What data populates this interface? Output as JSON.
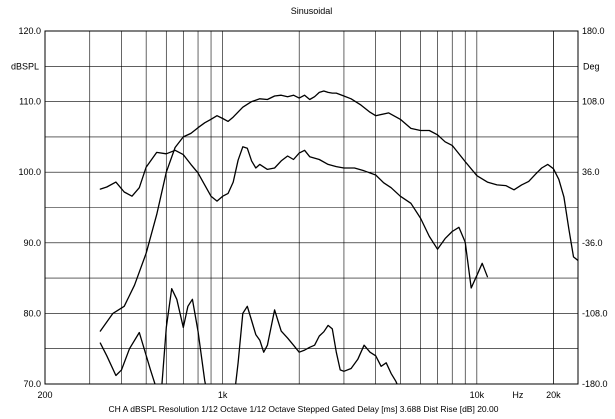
{
  "chart_data": {
    "type": "line",
    "title": "Sinusoidal",
    "x_scale": "log",
    "xlim": [
      200,
      25000
    ],
    "x_tick_labels": [
      {
        "value": 200,
        "label": "200"
      },
      {
        "value": 1000,
        "label": "1k"
      },
      {
        "value": 10000,
        "label": "10k"
      },
      {
        "value": 20000,
        "label": "20k"
      }
    ],
    "x_unit_label": "Hz",
    "left_axis": {
      "unit": "dBSPL",
      "ylim": [
        70,
        120
      ],
      "ticks": [
        {
          "value": 120,
          "label": "120.0"
        },
        {
          "value": 110,
          "label": "110.0"
        },
        {
          "value": 100,
          "label": "100.0"
        },
        {
          "value": 90,
          "label": "90.0"
        },
        {
          "value": 80,
          "label": "80.0"
        },
        {
          "value": 70,
          "label": "70.0"
        }
      ]
    },
    "right_axis": {
      "unit": "Deg",
      "ylim": [
        -180,
        180
      ],
      "ticks": [
        {
          "value": 180,
          "label": "180.0"
        },
        {
          "value": 108,
          "label": "108.0"
        },
        {
          "value": 36,
          "label": "36.0"
        },
        {
          "value": -36,
          "label": "-36.0"
        },
        {
          "value": -108,
          "label": "-108.0"
        },
        {
          "value": -180,
          "label": "-180.0"
        }
      ]
    },
    "grid": true,
    "footer": "CH A   dBSPL   Resolution 1/12 Octave   1/12 Octave   Stepped   Gated   Delay [ms] 3.688   Dist Rise [dB] 20.00",
    "series": [
      {
        "x": [
          330,
          370,
          410,
          450,
          500,
          550,
          600,
          650,
          700,
          750,
          800,
          850,
          900,
          950,
          1000,
          1050,
          1100,
          1200,
          1300,
          1400,
          1500,
          1600,
          1700,
          1800,
          1900,
          2000,
          2100,
          2200,
          2300,
          2400,
          2500,
          2600,
          2700,
          2800,
          3000,
          3200,
          3500,
          3800,
          4000,
          4500,
          5000,
          5500,
          6000,
          6500,
          7000,
          7500,
          8000,
          9000,
          10000,
          11000,
          12000,
          13000,
          14000,
          15000,
          16000,
          17000,
          18000,
          19000,
          20000,
          21000,
          22000,
          23000,
          24000,
          25000
        ],
        "y": [
          77.5,
          80,
          81,
          84,
          88.5,
          94,
          100,
          103.5,
          105,
          105.5,
          106.3,
          107,
          107.5,
          108,
          107.6,
          107.2,
          107.8,
          109.2,
          110,
          110.4,
          110.3,
          110.8,
          110.9,
          110.7,
          110.9,
          110.5,
          110.9,
          110.3,
          110.7,
          111.3,
          111.5,
          111.3,
          111.2,
          111.2,
          110.8,
          110.4,
          109.5,
          108.5,
          108,
          108.4,
          107.5,
          106.2,
          105.9,
          105.9,
          105.3,
          104.3,
          103.8,
          101.5,
          99.5,
          98.6,
          98.2,
          98.1,
          97.5,
          98.2,
          98.7,
          99.7,
          100.6,
          101.1,
          100.5,
          99,
          96.5,
          92,
          88,
          87.5
        ]
      },
      {
        "x": [
          330,
          350,
          380,
          410,
          440,
          470,
          500,
          550,
          600,
          650,
          700,
          750,
          800,
          850,
          900,
          950,
          1000,
          1050,
          1100,
          1150,
          1200,
          1250,
          1300,
          1350,
          1400,
          1500,
          1600,
          1700,
          1800,
          1900,
          2000,
          2100,
          2200,
          2400,
          2600,
          2800,
          3000,
          3300,
          3600,
          4000,
          4300,
          4600,
          5000,
          5500,
          6000,
          6500,
          7000,
          7500,
          8000,
          8500,
          9000,
          9500,
          10000,
          10500,
          11000
        ],
        "y": [
          97.6,
          97.9,
          98.6,
          97.2,
          96.6,
          97.8,
          100.7,
          102.8,
          102.6,
          103.1,
          102.5,
          101.1,
          99.9,
          98.2,
          96.6,
          95.9,
          96.6,
          97,
          98.6,
          101.7,
          103.6,
          103.4,
          101.6,
          100.6,
          101.1,
          100.4,
          100.6,
          101.6,
          102.3,
          101.8,
          102.7,
          103.1,
          102.2,
          101.8,
          101.1,
          100.8,
          100.6,
          100.6,
          100.2,
          99.6,
          98.5,
          97.8,
          96.6,
          95.6,
          93.5,
          90.9,
          89.1,
          90.6,
          91.6,
          92.2,
          90.1,
          83.6,
          85.4,
          87.1,
          85.2
        ]
      },
      {
        "x": [
          330,
          350,
          380,
          400,
          430,
          470,
          520,
          570,
          600,
          630,
          660,
          700,
          730,
          760,
          800,
          850,
          900,
          950,
          1000,
          1050,
          1100,
          1150,
          1200,
          1250,
          1300,
          1350,
          1400,
          1450,
          1500,
          1600,
          1700,
          1800,
          1900,
          2000,
          2100,
          2200,
          2300,
          2400,
          2500,
          2600,
          2700,
          2800,
          2900,
          3000,
          3200,
          3400,
          3600,
          3800,
          4000,
          4200,
          4400,
          4600,
          4800,
          5000,
          5200
        ],
        "y": [
          75.8,
          74,
          71.2,
          72,
          75,
          77.3,
          72,
          67.5,
          78,
          83.5,
          82,
          78,
          81,
          82,
          77.5,
          70.5,
          66,
          64,
          68,
          68,
          67,
          73,
          80,
          81,
          79,
          77,
          76.2,
          74.5,
          75.5,
          80.5,
          77.5,
          76.5,
          75.5,
          74.5,
          74.8,
          75.2,
          75.5,
          76.8,
          77.4,
          78.3,
          77.8,
          74.5,
          72,
          71.8,
          72.2,
          73.5,
          75.5,
          74.5,
          74,
          72.5,
          73,
          71.5,
          70.4,
          69,
          68
        ]
      }
    ]
  }
}
